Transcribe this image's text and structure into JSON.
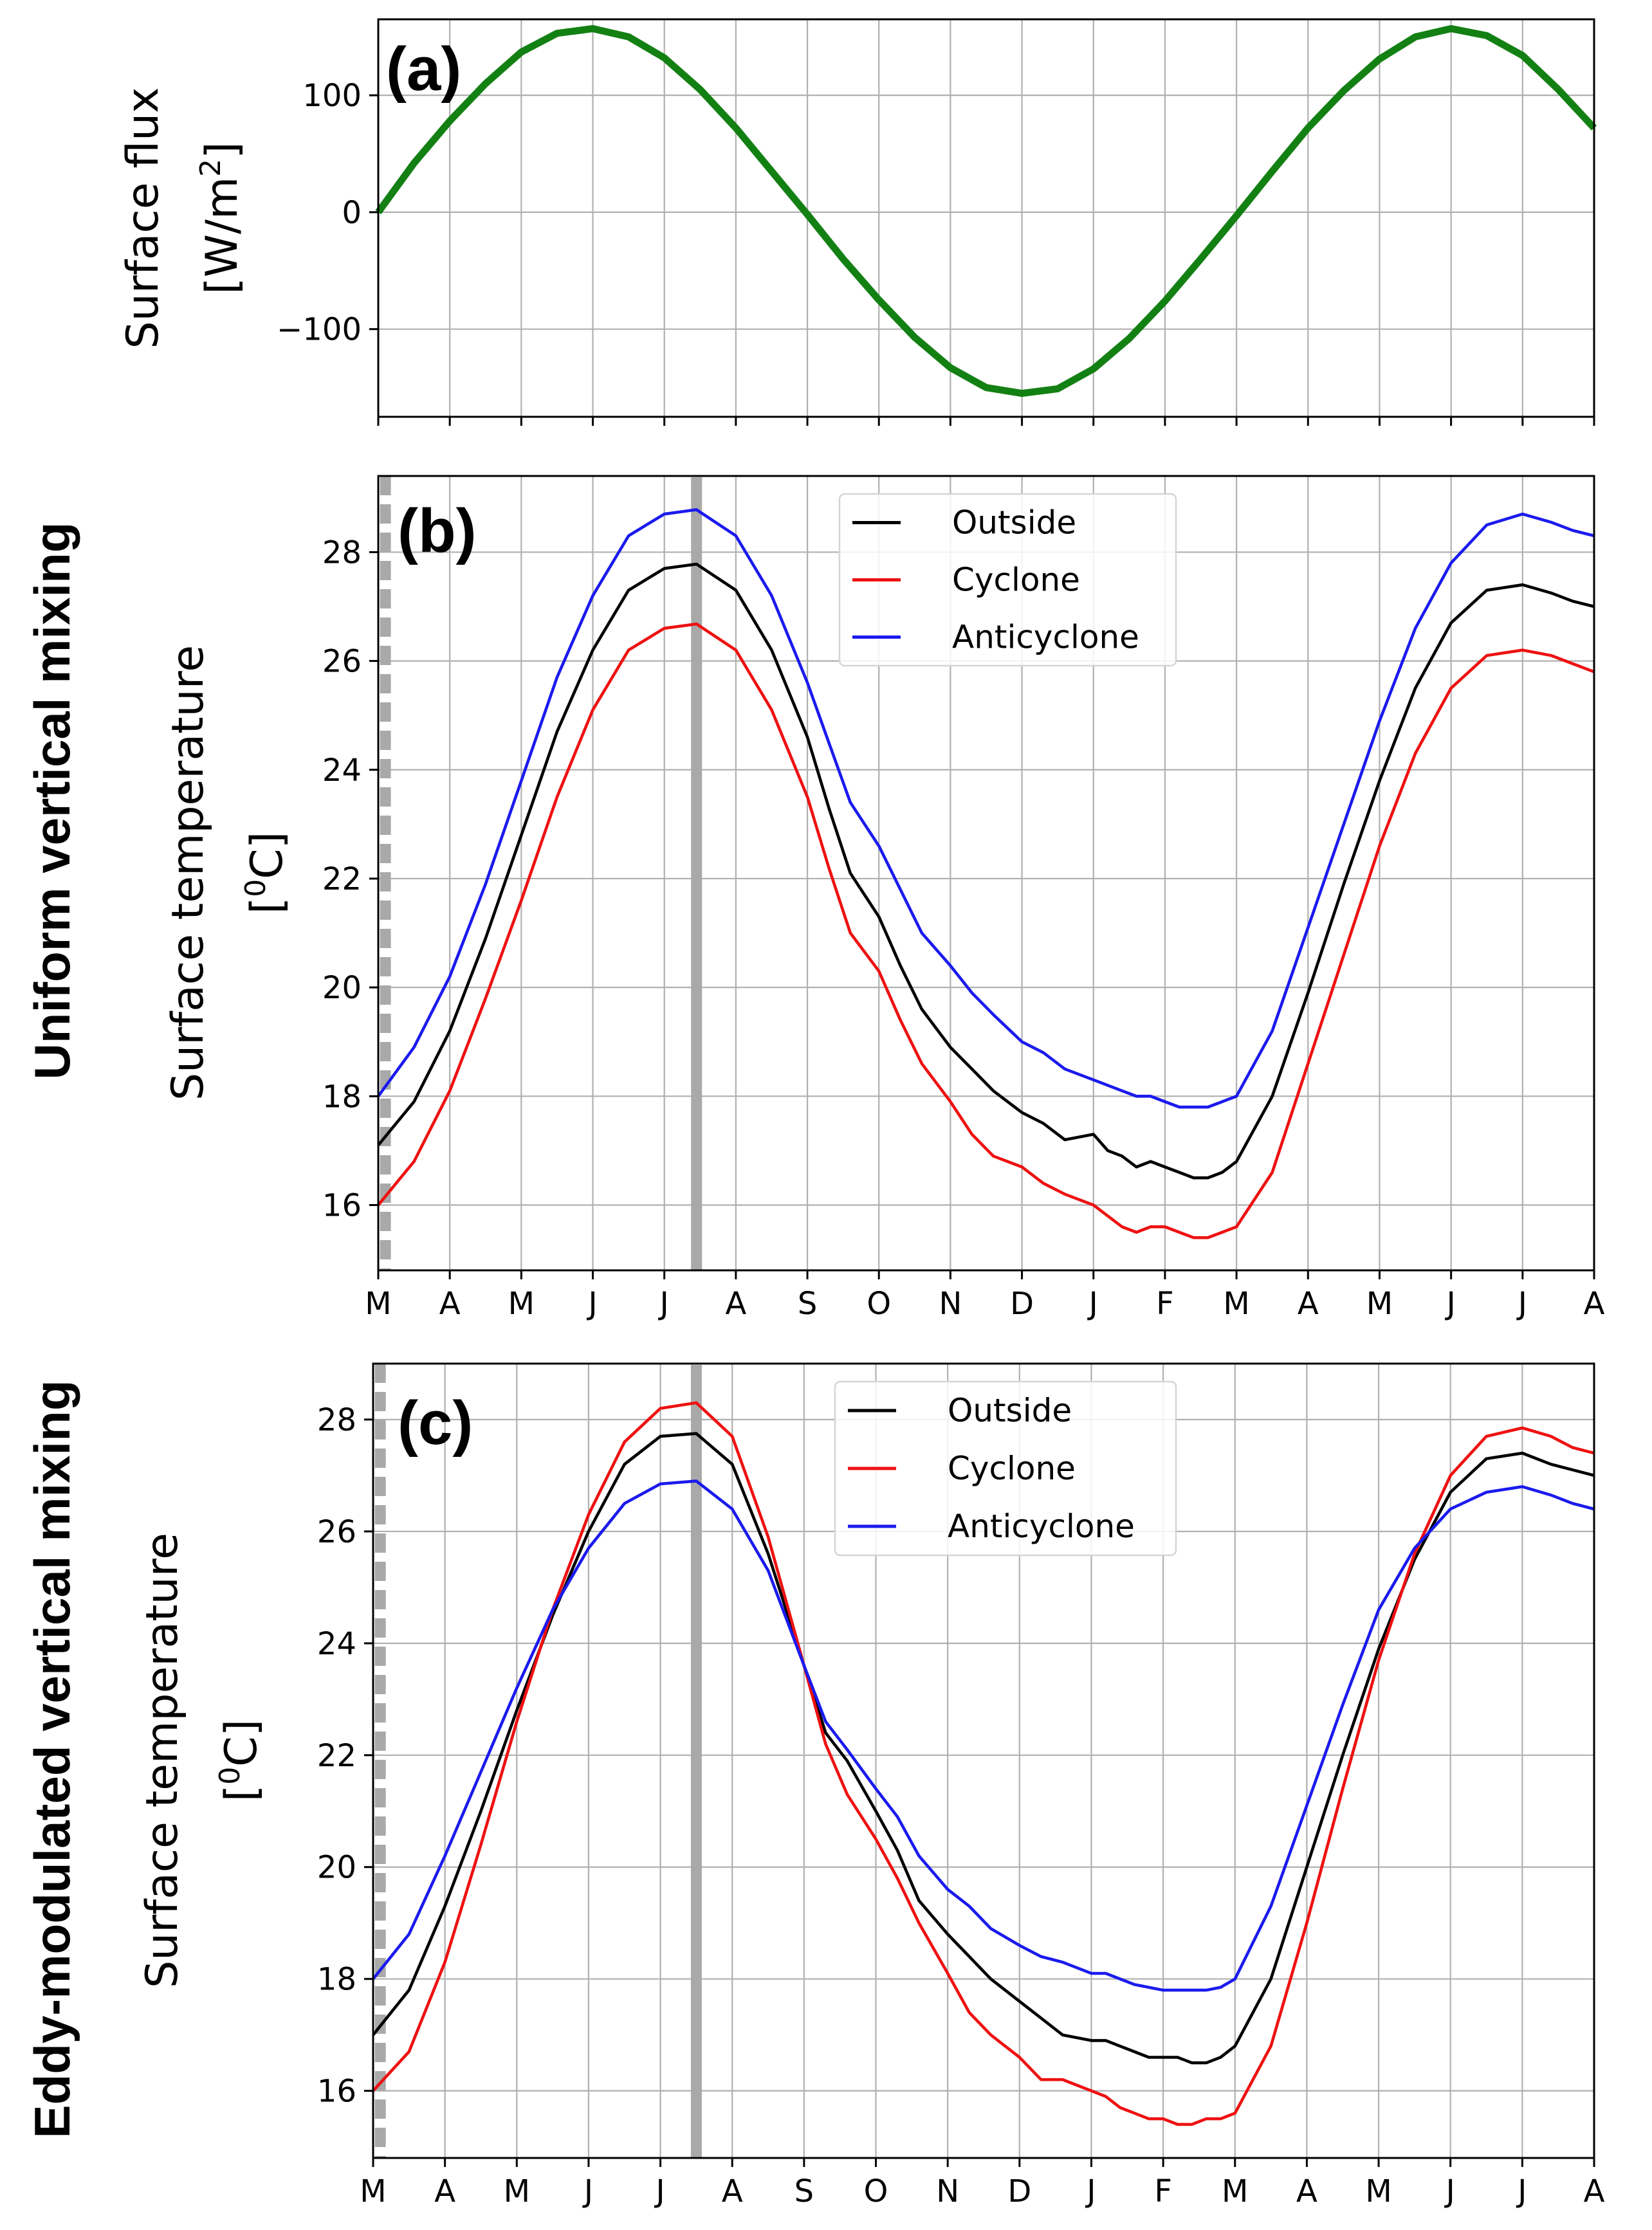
{
  "figure": {
    "row_label_b": "Uniform vertical mixing",
    "row_label_c": "Eddy-modulated vertical mixing"
  },
  "chart_data": [
    {
      "id": "a",
      "type": "line",
      "panel_label": "(a)",
      "ylabel_line1": "Surface flux",
      "ylabel_line2": "[W/m",
      "ylabel_sup": "2",
      "ylabel_end": "]",
      "xlim": [
        0,
        17
      ],
      "ylim": [
        -175,
        165
      ],
      "yticks": [
        -100,
        0,
        100
      ],
      "ytick_labels": [
        "−100",
        "0",
        "100"
      ],
      "show_x_tick_labels": false,
      "series": [
        {
          "name": "Surface flux",
          "color": "#138013",
          "x": [
            0,
            0.5,
            1,
            1.5,
            2,
            2.5,
            3,
            3.5,
            4,
            4.5,
            5,
            5.5,
            6,
            6.5,
            7,
            7.5,
            8,
            8.5,
            9,
            9.5,
            10,
            10.5,
            11,
            11.5,
            12,
            12.5,
            13,
            13.5,
            14,
            14.5,
            15,
            15.5,
            16,
            16.5,
            17
          ],
          "y": [
            0,
            42,
            78,
            110,
            137,
            153,
            157,
            150,
            132,
            105,
            72,
            35,
            -2,
            -40,
            -75,
            -107,
            -133,
            -150,
            -155,
            -151,
            -134,
            -108,
            -76,
            -40,
            -3,
            35,
            72,
            104,
            131,
            150,
            157,
            151,
            134,
            105,
            72
          ]
        }
      ]
    },
    {
      "id": "b",
      "type": "line",
      "panel_label": "(b)",
      "ylabel_line1": "Surface temperature",
      "ylabel_line2": "[",
      "ylabel_sup": "0",
      "ylabel_end": "C]",
      "xlim": [
        0,
        17
      ],
      "ylim": [
        14.8,
        29.4
      ],
      "yticks": [
        16,
        18,
        20,
        22,
        24,
        26,
        28
      ],
      "ytick_labels": [
        "16",
        "18",
        "20",
        "22",
        "24",
        "26",
        "28"
      ],
      "x_tick_labels": [
        "M",
        "A",
        "M",
        "J",
        "J",
        "A",
        "S",
        "O",
        "N",
        "D",
        "J",
        "F",
        "M",
        "A",
        "M",
        "J",
        "J",
        "A"
      ],
      "show_x_tick_labels": true,
      "vlines": [
        {
          "x": 0.1,
          "style": "dashed"
        },
        {
          "x": 4.45,
          "style": "solid"
        }
      ],
      "legend": [
        "Outside",
        "Cyclone",
        "Anticyclone"
      ],
      "series": [
        {
          "name": "Outside",
          "color": "#000000",
          "x": [
            0,
            0.5,
            1,
            1.5,
            2,
            2.5,
            3,
            3.5,
            4,
            4.45,
            5,
            5.5,
            6,
            6.3,
            6.6,
            7,
            7.3,
            7.6,
            8,
            8.3,
            8.6,
            9,
            9.3,
            9.6,
            10,
            10.2,
            10.4,
            10.6,
            10.8,
            11,
            11.2,
            11.4,
            11.6,
            11.8,
            12,
            12.5,
            13,
            13.5,
            14,
            14.5,
            15,
            15.5,
            16,
            16.4,
            16.7,
            17
          ],
          "y": [
            17.1,
            17.9,
            19.2,
            20.9,
            22.8,
            24.7,
            26.2,
            27.3,
            27.7,
            27.78,
            27.3,
            26.2,
            24.6,
            23.3,
            22.1,
            21.3,
            20.4,
            19.6,
            18.9,
            18.5,
            18.1,
            17.7,
            17.5,
            17.2,
            17.3,
            17.0,
            16.9,
            16.7,
            16.8,
            16.7,
            16.6,
            16.5,
            16.5,
            16.6,
            16.8,
            18.0,
            19.9,
            21.9,
            23.8,
            25.5,
            26.7,
            27.3,
            27.4,
            27.25,
            27.1,
            27.0
          ]
        },
        {
          "name": "Cyclone",
          "color": "#ee1111",
          "x": [
            0,
            0.5,
            1,
            1.5,
            2,
            2.5,
            3,
            3.5,
            4,
            4.45,
            5,
            5.5,
            6,
            6.3,
            6.6,
            7,
            7.3,
            7.6,
            8,
            8.3,
            8.6,
            9,
            9.3,
            9.6,
            10,
            10.2,
            10.4,
            10.6,
            10.8,
            11,
            11.2,
            11.4,
            11.6,
            11.8,
            12,
            12.5,
            13,
            13.5,
            14,
            14.5,
            15,
            15.5,
            16,
            16.4,
            16.7,
            17
          ],
          "y": [
            16.0,
            16.8,
            18.1,
            19.8,
            21.6,
            23.5,
            25.1,
            26.2,
            26.6,
            26.68,
            26.2,
            25.1,
            23.5,
            22.2,
            21.0,
            20.3,
            19.4,
            18.6,
            17.9,
            17.3,
            16.9,
            16.7,
            16.4,
            16.2,
            16.0,
            15.8,
            15.6,
            15.5,
            15.6,
            15.6,
            15.5,
            15.4,
            15.4,
            15.5,
            15.6,
            16.6,
            18.6,
            20.6,
            22.6,
            24.3,
            25.5,
            26.1,
            26.2,
            26.1,
            25.95,
            25.8
          ]
        },
        {
          "name": "Anticyclone",
          "color": "#1a1aee",
          "x": [
            0,
            0.5,
            1,
            1.5,
            2,
            2.5,
            3,
            3.5,
            4,
            4.45,
            5,
            5.5,
            6,
            6.3,
            6.6,
            7,
            7.3,
            7.6,
            8,
            8.3,
            8.6,
            9,
            9.3,
            9.6,
            10,
            10.2,
            10.4,
            10.6,
            10.8,
            11,
            11.2,
            11.4,
            11.6,
            11.8,
            12,
            12.5,
            13,
            13.5,
            14,
            14.5,
            15,
            15.5,
            16,
            16.4,
            16.7,
            17
          ],
          "y": [
            18.0,
            18.9,
            20.2,
            21.9,
            23.8,
            25.7,
            27.2,
            28.3,
            28.7,
            28.78,
            28.3,
            27.2,
            25.6,
            24.5,
            23.4,
            22.6,
            21.8,
            21.0,
            20.4,
            19.9,
            19.5,
            19.0,
            18.8,
            18.5,
            18.3,
            18.2,
            18.1,
            18.0,
            18.0,
            17.9,
            17.8,
            17.8,
            17.8,
            17.9,
            18.0,
            19.2,
            21.1,
            23.0,
            24.9,
            26.6,
            27.8,
            28.5,
            28.7,
            28.55,
            28.4,
            28.3
          ]
        }
      ]
    },
    {
      "id": "c",
      "type": "line",
      "panel_label": "(c)",
      "ylabel_line1": "Surface temperature",
      "ylabel_line2": "[",
      "ylabel_sup": "0",
      "ylabel_end": "C]",
      "xlim": [
        0,
        17
      ],
      "ylim": [
        14.8,
        29.0
      ],
      "yticks": [
        16,
        18,
        20,
        22,
        24,
        26,
        28
      ],
      "ytick_labels": [
        "16",
        "18",
        "20",
        "22",
        "24",
        "26",
        "28"
      ],
      "x_tick_labels": [
        "M",
        "A",
        "M",
        "J",
        "J",
        "A",
        "S",
        "O",
        "N",
        "D",
        "J",
        "F",
        "M",
        "A",
        "M",
        "J",
        "J",
        "A"
      ],
      "show_x_tick_labels": true,
      "vlines": [
        {
          "x": 0.1,
          "style": "dashed"
        },
        {
          "x": 4.5,
          "style": "solid"
        }
      ],
      "legend": [
        "Outside",
        "Cyclone",
        "Anticyclone"
      ],
      "series": [
        {
          "name": "Outside",
          "color": "#000000",
          "x": [
            0,
            0.5,
            1,
            1.5,
            2,
            2.5,
            3,
            3.5,
            4,
            4.5,
            5,
            5.5,
            6,
            6.3,
            6.6,
            7,
            7.3,
            7.6,
            8,
            8.3,
            8.6,
            9,
            9.3,
            9.6,
            10,
            10.2,
            10.4,
            10.6,
            10.8,
            11,
            11.2,
            11.4,
            11.6,
            11.8,
            12,
            12.5,
            13,
            13.5,
            14,
            14.5,
            15,
            15.5,
            16,
            16.4,
            16.7,
            17
          ],
          "y": [
            17.0,
            17.8,
            19.3,
            21.0,
            22.8,
            24.5,
            26.0,
            27.2,
            27.7,
            27.75,
            27.2,
            25.6,
            23.6,
            22.4,
            21.9,
            21.0,
            20.3,
            19.4,
            18.8,
            18.4,
            18.0,
            17.6,
            17.3,
            17.0,
            16.9,
            16.9,
            16.8,
            16.7,
            16.6,
            16.6,
            16.6,
            16.5,
            16.5,
            16.6,
            16.8,
            18.0,
            20.0,
            22.0,
            23.9,
            25.5,
            26.7,
            27.3,
            27.4,
            27.2,
            27.1,
            27.0
          ]
        },
        {
          "name": "Cyclone",
          "color": "#ee1111",
          "x": [
            0,
            0.5,
            1,
            1.5,
            2,
            2.5,
            3,
            3.5,
            4,
            4.5,
            5,
            5.5,
            6,
            6.3,
            6.6,
            7,
            7.3,
            7.6,
            8,
            8.3,
            8.6,
            9,
            9.3,
            9.6,
            10,
            10.2,
            10.4,
            10.6,
            10.8,
            11,
            11.2,
            11.4,
            11.6,
            11.8,
            12,
            12.5,
            13,
            13.5,
            14,
            14.5,
            15,
            15.5,
            16,
            16.4,
            16.7,
            17
          ],
          "y": [
            16.0,
            16.7,
            18.3,
            20.4,
            22.6,
            24.6,
            26.3,
            27.6,
            28.2,
            28.3,
            27.7,
            25.9,
            23.6,
            22.2,
            21.3,
            20.5,
            19.8,
            19.0,
            18.1,
            17.4,
            17.0,
            16.6,
            16.2,
            16.2,
            16.0,
            15.9,
            15.7,
            15.6,
            15.5,
            15.5,
            15.4,
            15.4,
            15.5,
            15.5,
            15.6,
            16.8,
            19.0,
            21.4,
            23.7,
            25.6,
            27.0,
            27.7,
            27.85,
            27.7,
            27.5,
            27.4
          ]
        },
        {
          "name": "Anticyclone",
          "color": "#1a1aee",
          "x": [
            0,
            0.5,
            1,
            1.5,
            2,
            2.5,
            3,
            3.5,
            4,
            4.5,
            5,
            5.5,
            6,
            6.3,
            6.6,
            7,
            7.3,
            7.6,
            8,
            8.3,
            8.6,
            9,
            9.3,
            9.6,
            10,
            10.2,
            10.4,
            10.6,
            10.8,
            11,
            11.2,
            11.4,
            11.6,
            11.8,
            12,
            12.5,
            13,
            13.5,
            14,
            14.5,
            15,
            15.5,
            16,
            16.4,
            16.7,
            17
          ],
          "y": [
            18.0,
            18.8,
            20.2,
            21.7,
            23.2,
            24.6,
            25.7,
            26.5,
            26.85,
            26.9,
            26.4,
            25.3,
            23.6,
            22.6,
            22.1,
            21.4,
            20.9,
            20.2,
            19.6,
            19.3,
            18.9,
            18.6,
            18.4,
            18.3,
            18.1,
            18.1,
            18.0,
            17.9,
            17.85,
            17.8,
            17.8,
            17.8,
            17.8,
            17.85,
            18.0,
            19.3,
            21.1,
            22.9,
            24.6,
            25.7,
            26.4,
            26.7,
            26.8,
            26.65,
            26.5,
            26.4
          ]
        }
      ]
    }
  ]
}
